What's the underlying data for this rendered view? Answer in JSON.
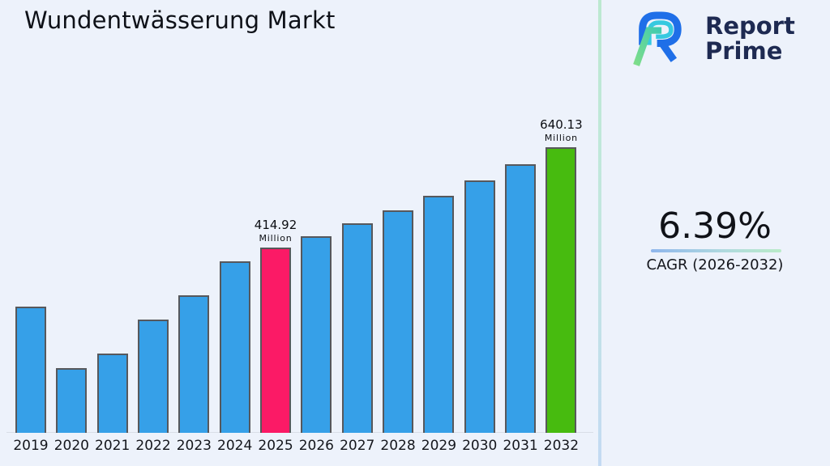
{
  "page": {
    "background": "#EDF2FB"
  },
  "header": {
    "title": "Wundentwässerung Markt"
  },
  "logo": {
    "line1": "Report",
    "line2": "Prime",
    "text_color": "#1E2A52",
    "mark_colors": {
      "blue": "#1F6FE8",
      "cyan": "#36C9E0",
      "green_start": "#7EDD8A",
      "green_end": "#3FCBB1"
    }
  },
  "cagr_panel": {
    "value": "6.39%",
    "label": "CAGR (2026-2032)",
    "underline_colors": [
      "#8FB6EC",
      "#B9EBC8"
    ]
  },
  "chart_data": {
    "type": "bar",
    "title": "Wundentwässerung Markt",
    "unit": "Million",
    "categories": [
      "2019",
      "2020",
      "2021",
      "2022",
      "2023",
      "2024",
      "2025",
      "2026",
      "2027",
      "2028",
      "2029",
      "2030",
      "2031",
      "2032"
    ],
    "values": [
      283,
      145,
      178,
      254,
      308,
      384,
      414.92,
      441.43,
      469.64,
      499.65,
      531.58,
      565.55,
      601.69,
      640.13
    ],
    "labeled_points": [
      {
        "category": "2025",
        "value_label": "414.92",
        "unit_label": "Million"
      },
      {
        "category": "2032",
        "value_label": "640.13",
        "unit_label": "Million"
      }
    ],
    "colors": {
      "default": "#36A0E8",
      "2025": "#FB1A66",
      "2032": "#47BB0F",
      "bar_border": "#57585C",
      "axis_line": "#D9DEE7"
    },
    "xlabel": "",
    "ylabel": "",
    "ylim": [
      0,
      700
    ],
    "grid": false,
    "y_axis_visible": false,
    "legend": false
  }
}
